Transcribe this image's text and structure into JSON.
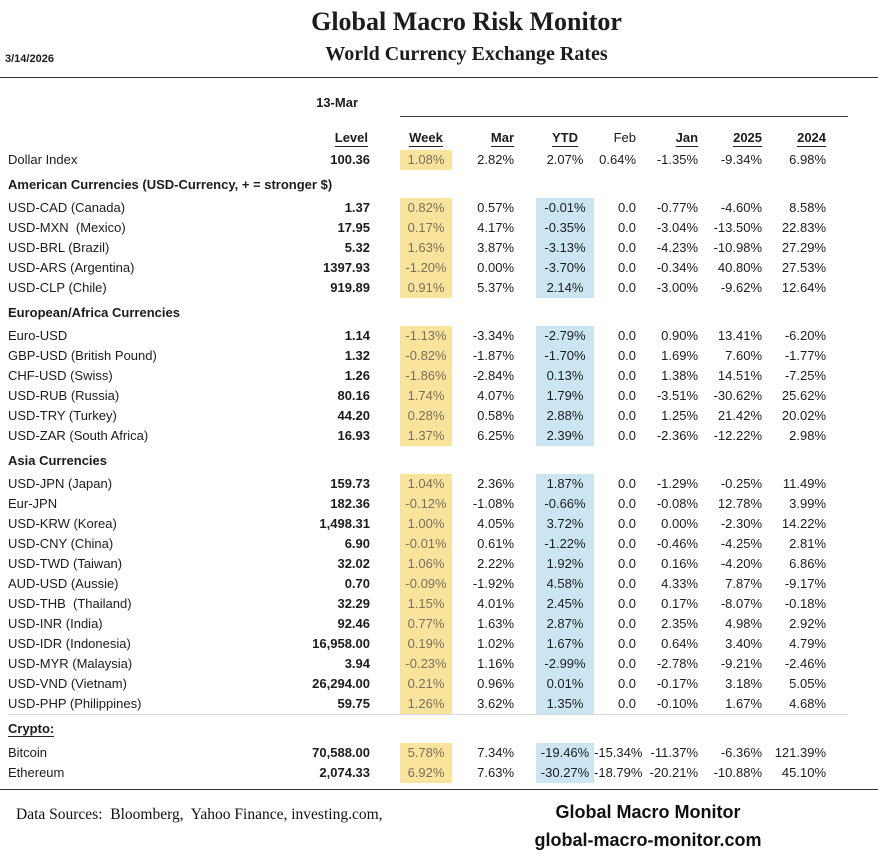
{
  "header": {
    "title": "Global Macro Risk Monitor",
    "subtitle": "World Currency Exchange Rates",
    "date": "3/14/2026"
  },
  "table": {
    "snapshot_date": "13-Mar",
    "columns": [
      {
        "label": "Level",
        "underlined": true
      },
      {
        "label": "Week",
        "underlined": true
      },
      {
        "label": "Mar",
        "underlined": true
      },
      {
        "label": "YTD",
        "underlined": true
      },
      {
        "label": "Feb",
        "underlined": false
      },
      {
        "label": "Jan",
        "underlined": true
      },
      {
        "label": "2025",
        "underlined": true
      },
      {
        "label": "2024",
        "underlined": true
      }
    ],
    "rows": [
      {
        "type": "data",
        "label": "Dollar Index",
        "level": "100.36",
        "week": "1.08%",
        "mar": "2.82%",
        "ytd": "2.07%",
        "feb": "0.64%",
        "jan": "-1.35%",
        "y2025": "-9.34%",
        "y2024": "6.98%",
        "week_hl": true,
        "ytd_hl": false
      },
      {
        "type": "section",
        "label": "American Currencies (USD-Currency, + = stronger $)",
        "underline": false,
        "topline": false
      },
      {
        "type": "data",
        "label": "USD-CAD (Canada)",
        "level": "1.37",
        "week": "0.82%",
        "mar": "0.57%",
        "ytd": "-0.01%",
        "feb": "0.0",
        "jan": "-0.77%",
        "y2025": "-4.60%",
        "y2024": "8.58%",
        "week_hl": true,
        "ytd_hl": true
      },
      {
        "type": "data",
        "label": "USD-MXN  (Mexico)",
        "level": "17.95",
        "week": "0.17%",
        "mar": "4.17%",
        "ytd": "-0.35%",
        "feb": "0.0",
        "jan": "-3.04%",
        "y2025": "-13.50%",
        "y2024": "22.83%",
        "week_hl": true,
        "ytd_hl": true
      },
      {
        "type": "data",
        "label": "USD-BRL (Brazil)",
        "level": "5.32",
        "week": "1.63%",
        "mar": "3.87%",
        "ytd": "-3.13%",
        "feb": "0.0",
        "jan": "-4.23%",
        "y2025": "-10.98%",
        "y2024": "27.29%",
        "week_hl": true,
        "ytd_hl": true
      },
      {
        "type": "data",
        "label": "USD-ARS (Argentina)",
        "level": "1397.93",
        "week": "-1.20%",
        "mar": "0.00%",
        "ytd": "-3.70%",
        "feb": "0.0",
        "jan": "-0.34%",
        "y2025": "40.80%",
        "y2024": "27.53%",
        "week_hl": true,
        "ytd_hl": true
      },
      {
        "type": "data",
        "label": "USD-CLP (Chile)",
        "level": "919.89",
        "week": "0.91%",
        "mar": "5.37%",
        "ytd": "2.14%",
        "feb": "0.0",
        "jan": "-3.00%",
        "y2025": "-9.62%",
        "y2024": "12.64%",
        "week_hl": true,
        "ytd_hl": true
      },
      {
        "type": "section",
        "label": "European/Africa Currencies",
        "underline": false,
        "topline": false
      },
      {
        "type": "data",
        "label": "Euro-USD",
        "level": "1.14",
        "week": "-1.13%",
        "mar": "-3.34%",
        "ytd": "-2.79%",
        "feb": "0.0",
        "jan": "0.90%",
        "y2025": "13.41%",
        "y2024": "-6.20%",
        "week_hl": true,
        "ytd_hl": true
      },
      {
        "type": "data",
        "label": "GBP-USD (British Pound)",
        "level": "1.32",
        "week": "-0.82%",
        "mar": "-1.87%",
        "ytd": "-1.70%",
        "feb": "0.0",
        "jan": "1.69%",
        "y2025": "7.60%",
        "y2024": "-1.77%",
        "week_hl": true,
        "ytd_hl": true
      },
      {
        "type": "data",
        "label": "CHF-USD (Swiss)",
        "level": "1.26",
        "week": "-1.86%",
        "mar": "-2.84%",
        "ytd": "0.13%",
        "feb": "0.0",
        "jan": "1.38%",
        "y2025": "14.51%",
        "y2024": "-7.25%",
        "week_hl": true,
        "ytd_hl": true
      },
      {
        "type": "data",
        "label": "USD-RUB (Russia)",
        "level": "80.16",
        "week": "1.74%",
        "mar": "4.07%",
        "ytd": "1.79%",
        "feb": "0.0",
        "jan": "-3.51%",
        "y2025": "-30.62%",
        "y2024": "25.62%",
        "week_hl": true,
        "ytd_hl": true
      },
      {
        "type": "data",
        "label": "USD-TRY (Turkey)",
        "level": "44.20",
        "week": "0.28%",
        "mar": "0.58%",
        "ytd": "2.88%",
        "feb": "0.0",
        "jan": "1.25%",
        "y2025": "21.42%",
        "y2024": "20.02%",
        "week_hl": true,
        "ytd_hl": true
      },
      {
        "type": "data",
        "label": "USD-ZAR (South Africa)",
        "level": "16.93",
        "week": "1.37%",
        "mar": "6.25%",
        "ytd": "2.39%",
        "feb": "0.0",
        "jan": "-2.36%",
        "y2025": "-12.22%",
        "y2024": "2.98%",
        "week_hl": true,
        "ytd_hl": true
      },
      {
        "type": "section",
        "label": "Asia Currencies",
        "underline": false,
        "topline": false
      },
      {
        "type": "data",
        "label": "USD-JPN (Japan)",
        "level": "159.73",
        "week": "1.04%",
        "mar": "2.36%",
        "ytd": "1.87%",
        "feb": "0.0",
        "jan": "-1.29%",
        "y2025": "-0.25%",
        "y2024": "11.49%",
        "week_hl": true,
        "ytd_hl": true
      },
      {
        "type": "data",
        "label": "Eur-JPN",
        "level": "182.36",
        "week": "-0.12%",
        "mar": "-1.08%",
        "ytd": "-0.66%",
        "feb": "0.0",
        "jan": "-0.08%",
        "y2025": "12.78%",
        "y2024": "3.99%",
        "week_hl": true,
        "ytd_hl": true
      },
      {
        "type": "data",
        "label": "USD-KRW (Korea)",
        "level": "1,498.31",
        "week": "1.00%",
        "mar": "4.05%",
        "ytd": "3.72%",
        "feb": "0.0",
        "jan": "0.00%",
        "y2025": "-2.30%",
        "y2024": "14.22%",
        "week_hl": true,
        "ytd_hl": true
      },
      {
        "type": "data",
        "label": "USD-CNY (China)",
        "level": "6.90",
        "week": "-0.01%",
        "mar": "0.61%",
        "ytd": "-1.22%",
        "feb": "0.0",
        "jan": "-0.46%",
        "y2025": "-4.25%",
        "y2024": "2.81%",
        "week_hl": true,
        "ytd_hl": true
      },
      {
        "type": "data",
        "label": "USD-TWD (Taiwan)",
        "level": "32.02",
        "week": "1.06%",
        "mar": "2.22%",
        "ytd": "1.92%",
        "feb": "0.0",
        "jan": "0.16%",
        "y2025": "-4.20%",
        "y2024": "6.86%",
        "week_hl": true,
        "ytd_hl": true
      },
      {
        "type": "data",
        "label": "AUD-USD (Aussie)",
        "level": "0.70",
        "week": "-0.09%",
        "mar": "-1.92%",
        "ytd": "4.58%",
        "feb": "0.0",
        "jan": "4.33%",
        "y2025": "7.87%",
        "y2024": "-9.17%",
        "week_hl": true,
        "ytd_hl": true
      },
      {
        "type": "data",
        "label": "USD-THB  (Thailand)",
        "level": "32.29",
        "week": "1.15%",
        "mar": "4.01%",
        "ytd": "2.45%",
        "feb": "0.0",
        "jan": "0.17%",
        "y2025": "-8.07%",
        "y2024": "-0.18%",
        "week_hl": true,
        "ytd_hl": true
      },
      {
        "type": "data",
        "label": "USD-INR (India)",
        "level": "92.46",
        "week": "0.77%",
        "mar": "1.63%",
        "ytd": "2.87%",
        "feb": "0.0",
        "jan": "2.35%",
        "y2025": "4.98%",
        "y2024": "2.92%",
        "week_hl": true,
        "ytd_hl": true
      },
      {
        "type": "data",
        "label": "USD-IDR (Indonesia)",
        "level": "16,958.00",
        "week": "0.19%",
        "mar": "1.02%",
        "ytd": "1.67%",
        "feb": "0.0",
        "jan": "0.64%",
        "y2025": "3.40%",
        "y2024": "4.79%",
        "week_hl": true,
        "ytd_hl": true
      },
      {
        "type": "data",
        "label": "USD-MYR (Malaysia)",
        "level": "3.94",
        "week": "-0.23%",
        "mar": "1.16%",
        "ytd": "-2.99%",
        "feb": "0.0",
        "jan": "-2.78%",
        "y2025": "-9.21%",
        "y2024": "-2.46%",
        "week_hl": true,
        "ytd_hl": true
      },
      {
        "type": "data",
        "label": "USD-VND (Vietnam)",
        "level": "26,294.00",
        "week": "0.21%",
        "mar": "0.96%",
        "ytd": "0.01%",
        "feb": "0.0",
        "jan": "-0.17%",
        "y2025": "3.18%",
        "y2024": "5.05%",
        "week_hl": true,
        "ytd_hl": true
      },
      {
        "type": "data",
        "label": "USD-PHP (Philippines)",
        "level": "59.75",
        "week": "1.26%",
        "mar": "3.62%",
        "ytd": "1.35%",
        "feb": "0.0",
        "jan": "-0.10%",
        "y2025": "1.67%",
        "y2024": "4.68%",
        "week_hl": true,
        "ytd_hl": true
      },
      {
        "type": "section",
        "label": "Crypto:",
        "underline": true,
        "topline": true
      },
      {
        "type": "data",
        "label": "Bitcoin",
        "level": "70,588.00",
        "week": "5.78%",
        "mar": "7.34%",
        "ytd": "-19.46%",
        "feb": "-15.34%",
        "jan": "-11.37%",
        "y2025": "-6.36%",
        "y2024": "121.39%",
        "week_hl": true,
        "ytd_hl": true,
        "crypto": true
      },
      {
        "type": "data",
        "label": "Ethereum",
        "level": "2,074.33",
        "week": "6.92%",
        "mar": "7.63%",
        "ytd": "-30.27%",
        "feb": "-18.79%",
        "jan": "-20.21%",
        "y2025": "-10.88%",
        "y2024": "45.10%",
        "week_hl": true,
        "ytd_hl": true,
        "crypto": true
      }
    ]
  },
  "footer": {
    "sources": "Data Sources:  Bloomberg,  Yahoo Finance, investing.com,",
    "brand": "Global Macro Monitor",
    "url": "global-macro-monitor.com"
  },
  "colors": {
    "week_highlight": "#fae49b",
    "ytd_highlight": "#cbe5f2",
    "week_text": "#75705f"
  }
}
